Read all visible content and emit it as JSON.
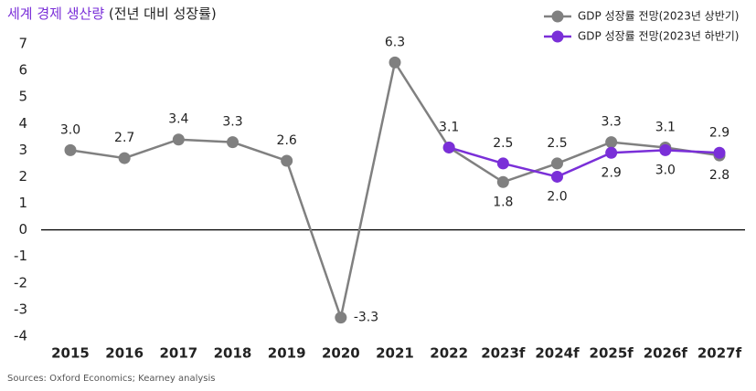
{
  "chart_data": {
    "type": "line",
    "title": "세계 경제 생산량",
    "subtitle": "(전년 대비 성장률)",
    "source": "Sources: Oxford Economics; Kearney analysis",
    "categories": [
      "2015",
      "2016",
      "2017",
      "2018",
      "2019",
      "2020",
      "2021",
      "2022",
      "2023f",
      "2024f",
      "2025f",
      "2026f",
      "2027f"
    ],
    "series": [
      {
        "name": "GDP 성장률 전망(2023년 상반기)",
        "color": "#808080",
        "values": [
          3.0,
          2.7,
          3.4,
          3.3,
          2.6,
          -3.3,
          6.3,
          3.1,
          1.8,
          2.5,
          3.3,
          3.1,
          2.8
        ],
        "value_labels": [
          "3.0",
          "2.7",
          "3.4",
          "3.3",
          "2.6",
          "-3.3",
          "6.3",
          "3.1",
          "1.8",
          "2.5",
          "3.3",
          "3.1",
          "2.8"
        ]
      },
      {
        "name": "GDP 성장률 전망(2023년 하반기)",
        "color": "#7a2fd8",
        "values": [
          null,
          null,
          null,
          null,
          null,
          null,
          null,
          3.1,
          2.5,
          2.0,
          2.9,
          3.0,
          2.9
        ],
        "value_labels": [
          null,
          null,
          null,
          null,
          null,
          null,
          null,
          null,
          "2.5",
          "2.0",
          "2.9",
          "3.0",
          "2.9"
        ]
      }
    ],
    "ylim": [
      -4,
      7
    ],
    "yticks": [
      -4,
      -3,
      -2,
      -1,
      0,
      1,
      2,
      3,
      4,
      5,
      6,
      7
    ],
    "legend": "top-right"
  }
}
